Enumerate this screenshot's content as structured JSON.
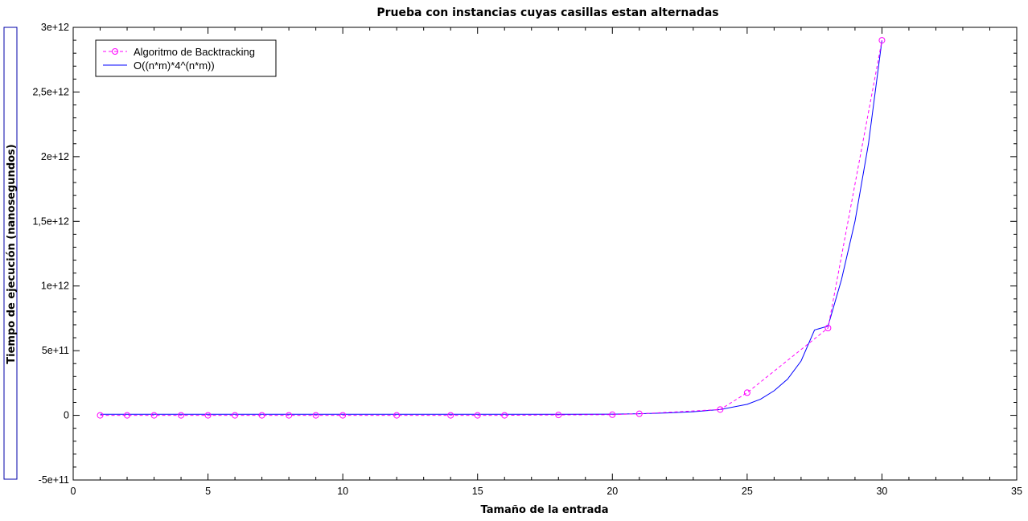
{
  "chart_data": {
    "type": "line",
    "title": "Prueba con instancias cuyas casillas estan alternadas",
    "xlabel": "Tamaño de la entrada",
    "ylabel": "Tiempo de ejecución (nanosegundos)",
    "xlim": [
      0,
      35
    ],
    "ylim": [
      -500000000000,
      3000000000000
    ],
    "x_ticks": [
      0,
      5,
      10,
      15,
      20,
      25,
      30,
      35
    ],
    "x_tick_labels": [
      "0",
      "5",
      "10",
      "15",
      "20",
      "25",
      "30",
      "35"
    ],
    "y_ticks": [
      -500000000000,
      0,
      500000000000,
      1000000000000,
      1500000000000,
      2000000000000,
      2500000000000,
      3000000000000
    ],
    "y_tick_labels": [
      "-5e+11",
      "0",
      "5e+11",
      "1e+12",
      "1,5e+12",
      "2e+12",
      "2,5e+12",
      "3e+12"
    ],
    "grid": false,
    "legend_position": "top-left",
    "series": [
      {
        "name": "Algoritmo de Backtracking",
        "color": "#ff00ff",
        "style": "dashed-circle-markers",
        "x": [
          1,
          2,
          3,
          4,
          5,
          6,
          7,
          8,
          9,
          10,
          12,
          14,
          15,
          16,
          18,
          20,
          21,
          24,
          25,
          28,
          30
        ],
        "y": [
          0,
          0,
          0,
          0,
          0,
          0,
          0,
          0,
          0,
          0,
          0,
          0,
          0,
          0,
          3000000000,
          5000000000,
          12000000000,
          45000000000,
          175000000000,
          675000000000,
          2900000000000
        ]
      },
      {
        "name": "O((n*m)*4^(n*m))",
        "color": "#0000ff",
        "style": "solid",
        "x": [
          1,
          2,
          4,
          6,
          8,
          10,
          12,
          14,
          16,
          18,
          20,
          21,
          22,
          23,
          24,
          25,
          25.5,
          26,
          26.5,
          27,
          27.5,
          28,
          28.5,
          29,
          29.5,
          30
        ],
        "y": [
          8000000000,
          8000000000,
          8000000000,
          8000000000,
          8000000000,
          8000000000,
          8000000000,
          8000000000,
          8000000000,
          8000000000,
          9000000000,
          12000000000,
          18000000000,
          28000000000,
          45000000000,
          85000000000,
          125000000000,
          190000000000,
          280000000000,
          420000000000,
          660000000000,
          690000000000,
          1050000000000,
          1500000000000,
          2100000000000,
          2900000000000
        ]
      }
    ]
  }
}
